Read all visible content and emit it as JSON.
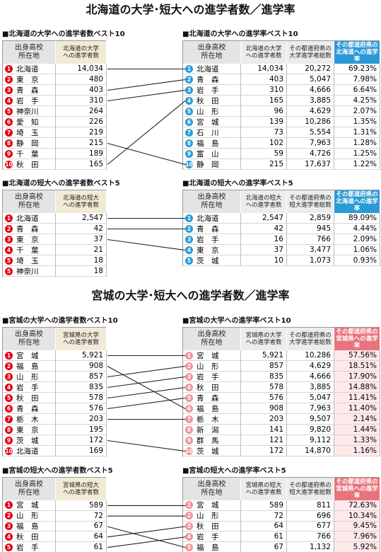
{
  "sections": [
    {
      "title": "北海道の大学･短大への進学者数／進学率",
      "accent": "#2a9ad6",
      "highlight": "#ffffff",
      "left_rank_color": "#e60012",
      "right_rank_color": "#2a9ad6",
      "tables": [
        {
          "title": "■北海道の大学への進学者数ベスト10",
          "headers": [
            [
              "出身高校",
              "所在地"
            ],
            [
              "北海道の大学",
              "への進学者数"
            ]
          ],
          "rows": [
            {
              "rank": 1,
              "name": "北海道",
              "values": [
                "14,034"
              ]
            },
            {
              "rank": 2,
              "name": "東　京",
              "values": [
                "480"
              ]
            },
            {
              "rank": 3,
              "name": "青　森",
              "values": [
                "403"
              ]
            },
            {
              "rank": 4,
              "name": "岩　手",
              "values": [
                "310"
              ]
            },
            {
              "rank": 5,
              "name": "神奈川",
              "values": [
                "264"
              ]
            },
            {
              "rank": 6,
              "name": "愛　知",
              "values": [
                "226"
              ]
            },
            {
              "rank": 7,
              "name": "埼　玉",
              "values": [
                "219"
              ]
            },
            {
              "rank": 8,
              "name": "静　岡",
              "values": [
                "215"
              ]
            },
            {
              "rank": 9,
              "name": "千　葉",
              "values": [
                "189"
              ]
            },
            {
              "rank": 10,
              "name": "秋　田",
              "values": [
                "165"
              ]
            }
          ]
        },
        {
          "title": "■北海道の大学への進学率ベスト10",
          "headers": [
            [
              "出身高校",
              "所在地"
            ],
            [
              "北海道の大学",
              "への進学者数"
            ],
            [
              "その都道府県の",
              "大学進学者総数"
            ],
            [
              "その都道府県の",
              "北海道への進学率"
            ]
          ],
          "rows": [
            {
              "rank": 1,
              "name": "北海道",
              "values": [
                "14,034",
                "20,272",
                "69.23%"
              ]
            },
            {
              "rank": 2,
              "name": "青　森",
              "values": [
                "403",
                "5,047",
                "7.98%"
              ]
            },
            {
              "rank": 3,
              "name": "岩　手",
              "values": [
                "310",
                "4,666",
                "6.64%"
              ]
            },
            {
              "rank": 4,
              "name": "秋　田",
              "values": [
                "165",
                "3,885",
                "4.25%"
              ]
            },
            {
              "rank": 5,
              "name": "山　形",
              "values": [
                "96",
                "4,629",
                "2.07%"
              ]
            },
            {
              "rank": 6,
              "name": "宮　城",
              "values": [
                "139",
                "10,286",
                "1.35%"
              ]
            },
            {
              "rank": 7,
              "name": "石　川",
              "values": [
                "73",
                "5,554",
                "1.31%"
              ]
            },
            {
              "rank": 8,
              "name": "福　島",
              "values": [
                "102",
                "7,963",
                "1.28%"
              ]
            },
            {
              "rank": 9,
              "name": "富　山",
              "values": [
                "59",
                "4,726",
                "1.25%"
              ]
            },
            {
              "rank": 10,
              "name": "静　岡",
              "values": [
                "215",
                "17,637",
                "1.22%"
              ]
            }
          ]
        },
        {
          "title": "■北海道の短大への進学者数ベスト5",
          "headers": [
            [
              "出身高校",
              "所在地"
            ],
            [
              "北海道の短大",
              "への進学者数"
            ]
          ],
          "rows": [
            {
              "rank": 1,
              "name": "北海道",
              "values": [
                "2,547"
              ]
            },
            {
              "rank": 2,
              "name": "青　森",
              "values": [
                "42"
              ]
            },
            {
              "rank": 3,
              "name": "東　京",
              "values": [
                "37"
              ]
            },
            {
              "rank": 4,
              "name": "千　葉",
              "values": [
                "21"
              ]
            },
            {
              "rank": 5,
              "name": "埼　玉",
              "values": [
                "18"
              ]
            },
            {
              "rank": 5,
              "name": "神奈川",
              "values": [
                "18"
              ]
            }
          ]
        },
        {
          "title": "■北海道の短大への進学率ベスト5",
          "headers": [
            [
              "出身高校",
              "所在地"
            ],
            [
              "北海道の短大",
              "への進学者数"
            ],
            [
              "その都道府県の",
              "短大進学者総数"
            ],
            [
              "その都道府県の",
              "北海道への進学率"
            ]
          ],
          "rows": [
            {
              "rank": 1,
              "name": "北海道",
              "values": [
                "2,547",
                "2,859",
                "89.09%"
              ]
            },
            {
              "rank": 2,
              "name": "青　森",
              "values": [
                "42",
                "945",
                "4.44%"
              ]
            },
            {
              "rank": 3,
              "name": "岩　手",
              "values": [
                "16",
                "766",
                "2.09%"
              ]
            },
            {
              "rank": 4,
              "name": "東　京",
              "values": [
                "37",
                "3,477",
                "1.06%"
              ]
            },
            {
              "rank": 5,
              "name": "茨　城",
              "values": [
                "10",
                "1,073",
                "0.93%"
              ]
            }
          ]
        }
      ]
    },
    {
      "title": "宮城の大学･短大への進学者数／進学率",
      "accent": "#e9737c",
      "highlight": "#fde8ea",
      "left_rank_color": "#e60012",
      "right_rank_color": "#f0939b",
      "tables": [
        {
          "title": "■宮城の大学への進学者数ベスト10",
          "headers": [
            [
              "出身高校",
              "所在地"
            ],
            [
              "宮城県の大学",
              "への進学者数"
            ]
          ],
          "rows": [
            {
              "rank": 1,
              "name": "宮　城",
              "values": [
                "5,921"
              ]
            },
            {
              "rank": 2,
              "name": "福　島",
              "values": [
                "908"
              ]
            },
            {
              "rank": 3,
              "name": "山　形",
              "values": [
                "857"
              ]
            },
            {
              "rank": 4,
              "name": "岩　手",
              "values": [
                "835"
              ]
            },
            {
              "rank": 5,
              "name": "秋　田",
              "values": [
                "578"
              ]
            },
            {
              "rank": 6,
              "name": "青　森",
              "values": [
                "576"
              ]
            },
            {
              "rank": 7,
              "name": "栃　木",
              "values": [
                "203"
              ]
            },
            {
              "rank": 8,
              "name": "東　京",
              "values": [
                "195"
              ]
            },
            {
              "rank": 9,
              "name": "茨　城",
              "values": [
                "172"
              ]
            },
            {
              "rank": 10,
              "name": "北海道",
              "values": [
                "169"
              ]
            }
          ]
        },
        {
          "title": "■宮城の大学への進学率ベスト10",
          "headers": [
            [
              "出身高校",
              "所在地"
            ],
            [
              "宮城県の大学",
              "への進学者数"
            ],
            [
              "その都道府県の",
              "大学進学者総数"
            ],
            [
              "その都道府県の",
              "宮城県への進学率"
            ]
          ],
          "rows": [
            {
              "rank": 1,
              "name": "宮　城",
              "values": [
                "5,921",
                "10,286",
                "57.56%"
              ]
            },
            {
              "rank": 2,
              "name": "山　形",
              "values": [
                "857",
                "4,629",
                "18.51%"
              ]
            },
            {
              "rank": 3,
              "name": "岩　手",
              "values": [
                "835",
                "4,666",
                "17.90%"
              ]
            },
            {
              "rank": 4,
              "name": "秋　田",
              "values": [
                "578",
                "3,885",
                "14.88%"
              ]
            },
            {
              "rank": 5,
              "name": "青　森",
              "values": [
                "576",
                "5,047",
                "11.41%"
              ]
            },
            {
              "rank": 6,
              "name": "福　島",
              "values": [
                "908",
                "7,963",
                "11.40%"
              ]
            },
            {
              "rank": 7,
              "name": "栃　木",
              "values": [
                "203",
                "9,507",
                "2.14%"
              ]
            },
            {
              "rank": 8,
              "name": "新　潟",
              "values": [
                "141",
                "9,820",
                "1.44%"
              ]
            },
            {
              "rank": 9,
              "name": "群　馬",
              "values": [
                "121",
                "9,112",
                "1.33%"
              ]
            },
            {
              "rank": 10,
              "name": "茨　城",
              "values": [
                "172",
                "14,870",
                "1.16%"
              ]
            }
          ]
        },
        {
          "title": "■宮城の短大への進学者数ベスト5",
          "headers": [
            [
              "出身高校",
              "所在地"
            ],
            [
              "宮城県の短大",
              "への進学者数"
            ]
          ],
          "rows": [
            {
              "rank": 1,
              "name": "宮　城",
              "values": [
                "589"
              ]
            },
            {
              "rank": 2,
              "name": "山　形",
              "values": [
                "72"
              ]
            },
            {
              "rank": 3,
              "name": "福　島",
              "values": [
                "67"
              ]
            },
            {
              "rank": 4,
              "name": "秋　田",
              "values": [
                "64"
              ]
            },
            {
              "rank": 5,
              "name": "岩　手",
              "values": [
                "61"
              ]
            }
          ]
        },
        {
          "title": "■宮城の短大への進学率ベスト5",
          "headers": [
            [
              "出身高校",
              "所在地"
            ],
            [
              "宮城県の短大",
              "への進学者数"
            ],
            [
              "その都道府県の",
              "短大進学者総数"
            ],
            [
              "その都道府県の",
              "宮城県への進学率"
            ]
          ],
          "rows": [
            {
              "rank": 1,
              "name": "宮　城",
              "values": [
                "589",
                "811",
                "72.63%"
              ]
            },
            {
              "rank": 2,
              "name": "山　形",
              "values": [
                "72",
                "696",
                "10.34%"
              ]
            },
            {
              "rank": 3,
              "name": "秋　田",
              "values": [
                "64",
                "677",
                "9.45%"
              ]
            },
            {
              "rank": 4,
              "name": "岩　手",
              "values": [
                "61",
                "766",
                "7.96%"
              ]
            },
            {
              "rank": 5,
              "name": "福　島",
              "values": [
                "67",
                "1,132",
                "5.92%"
              ]
            }
          ]
        }
      ]
    }
  ]
}
